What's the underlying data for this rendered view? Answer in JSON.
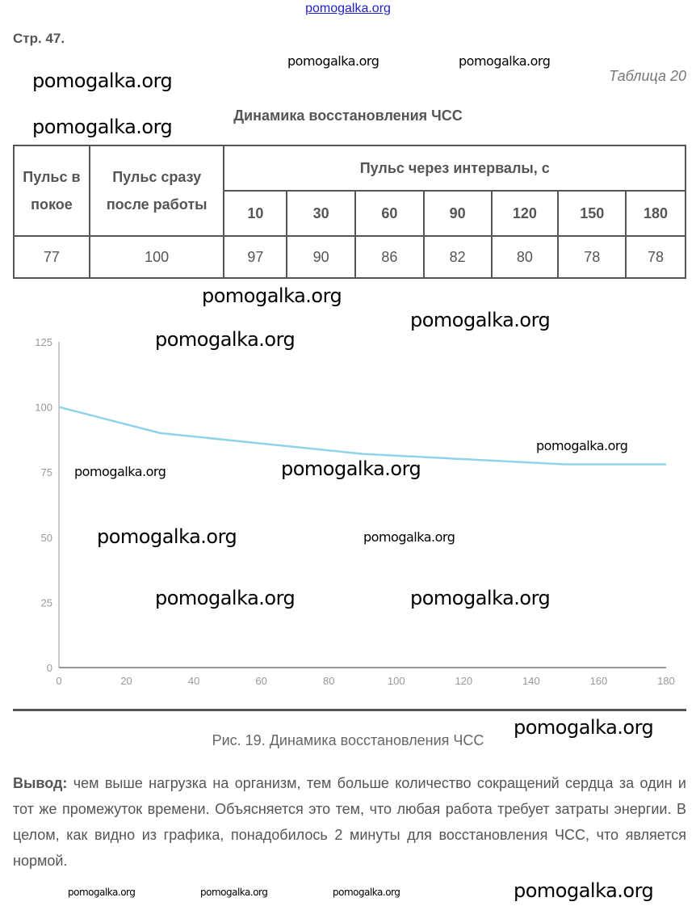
{
  "header": {
    "site_link": "pomogalka.org",
    "page_no": "Стр. 47.",
    "table_no": "Таблица 20",
    "table_title": "Динамика восстановления ЧСС"
  },
  "table": {
    "col_rest": "Пульс в покое",
    "col_after": "Пульс сразу после работы",
    "col_intervals": "Пульс через интервалы, с",
    "intervals": [
      "10",
      "30",
      "60",
      "90",
      "120",
      "150",
      "180"
    ],
    "row": [
      "77",
      "100",
      "97",
      "90",
      "86",
      "82",
      "80",
      "78",
      "78"
    ]
  },
  "chart_data": {
    "type": "line",
    "x": [
      0,
      30,
      60,
      90,
      120,
      150,
      180
    ],
    "series": [
      {
        "values": [
          100,
          90,
          86,
          82,
          80,
          78,
          78
        ],
        "color": "#8fd3ea"
      }
    ],
    "xlim": [
      0,
      180
    ],
    "ylim": [
      0,
      125
    ],
    "xticks": [
      "0",
      "20",
      "40",
      "60",
      "80",
      "100",
      "120",
      "140",
      "160",
      "180"
    ],
    "yticks": [
      "0",
      "25",
      "50",
      "75",
      "100",
      "125"
    ],
    "grid": false
  },
  "caption": "Рис. 19. Динамика восстановления ЧСС",
  "conclusion": {
    "label": "Вывод:",
    "text": "чем выше нагрузка на организм, тем больше количество сокращений сердца за один и тот же промежуток времени. Объясняется это тем, что любая работа требует затраты энергии. В целом, как видно из графика, понадобилось 2 минуты для восстановления ЧСС, что является нормой."
  },
  "watermark": "pomogalka.org"
}
